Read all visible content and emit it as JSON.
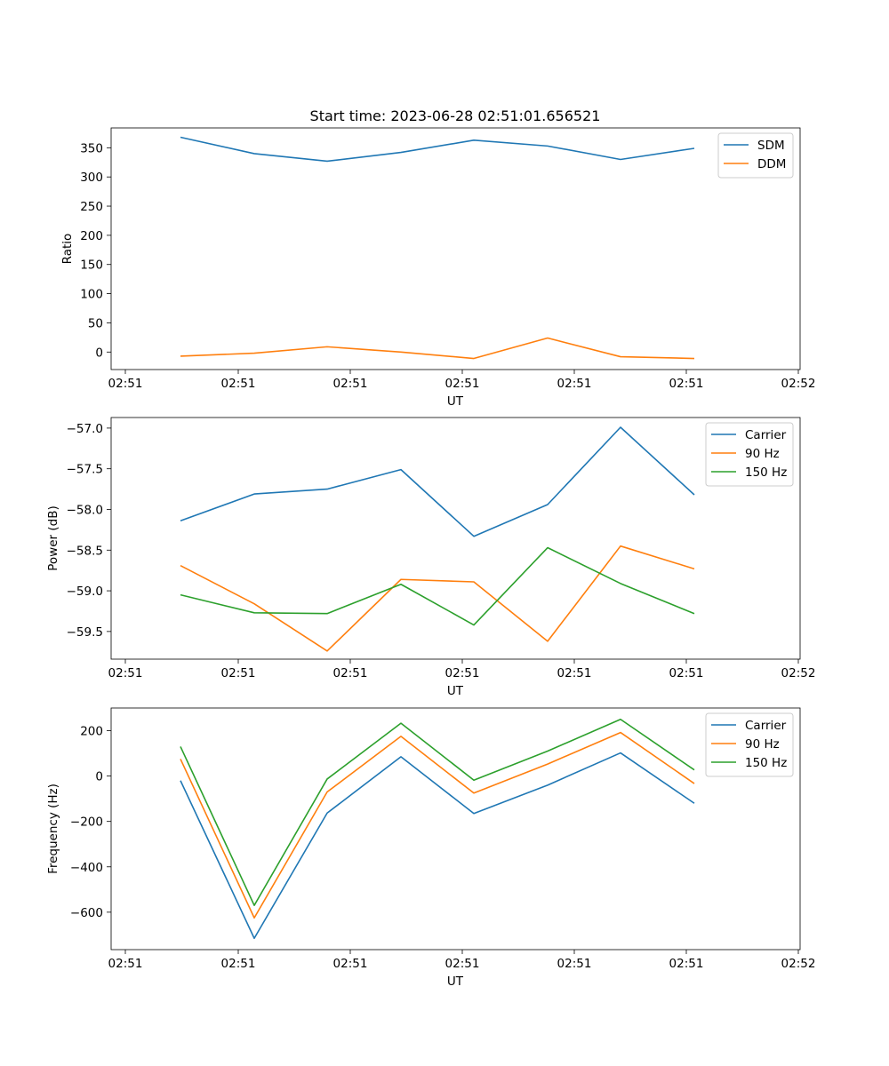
{
  "title": "Start time: 2023-06-28 02:51:01.656521",
  "colors": {
    "blue": "#1f77b4",
    "orange": "#ff7f0e",
    "green": "#2ca02c"
  },
  "chart_data": [
    {
      "type": "line",
      "xlabel": "UT",
      "ylabel": "Ratio",
      "xticks": [
        "02:51",
        "02:51",
        "02:51",
        "02:51",
        "02:51",
        "02:51",
        "02:52"
      ],
      "yticks": [
        0,
        50,
        100,
        150,
        200,
        250,
        300,
        350
      ],
      "ylim": [
        -30,
        384
      ],
      "legend": "top-right",
      "series": [
        {
          "name": "SDM",
          "color": "#1f77b4",
          "values": [
            368,
            340,
            327,
            342,
            363,
            353,
            330,
            349
          ]
        },
        {
          "name": "DDM",
          "color": "#ff7f0e",
          "values": [
            -7,
            -2,
            9,
            0,
            -11,
            24,
            -8,
            -11
          ]
        }
      ]
    },
    {
      "type": "line",
      "xlabel": "UT",
      "ylabel": "Power (dB)",
      "xticks": [
        "02:51",
        "02:51",
        "02:51",
        "02:51",
        "02:51",
        "02:51",
        "02:52"
      ],
      "yticks": [
        -59.5,
        -59.0,
        -58.5,
        -58.0,
        -57.5,
        -57.0
      ],
      "ytick_labels": [
        "−59.5",
        "−59.0",
        "−58.5",
        "−58.0",
        "−57.5",
        "−57.0"
      ],
      "ylim": [
        -59.84,
        -56.87
      ],
      "legend": "top-right",
      "series": [
        {
          "name": "Carrier",
          "color": "#1f77b4",
          "values": [
            -58.14,
            -57.81,
            -57.75,
            -57.51,
            -58.33,
            -57.94,
            -56.99,
            -57.82
          ]
        },
        {
          "name": "90 Hz",
          "color": "#ff7f0e",
          "values": [
            -58.69,
            -59.16,
            -59.74,
            -58.86,
            -58.89,
            -59.62,
            -58.45,
            -58.73
          ]
        },
        {
          "name": "150 Hz",
          "color": "#2ca02c",
          "values": [
            -59.05,
            -59.27,
            -59.28,
            -58.92,
            -59.42,
            -58.47,
            -58.91,
            -59.28
          ]
        }
      ]
    },
    {
      "type": "line",
      "xlabel": "UT",
      "ylabel": "Frequency (Hz)",
      "xticks": [
        "02:51",
        "02:51",
        "02:51",
        "02:51",
        "02:51",
        "02:51",
        "02:52"
      ],
      "yticks": [
        -600,
        -400,
        -200,
        0,
        200
      ],
      "ytick_labels": [
        "−600",
        "−400",
        "−200",
        "0",
        "200"
      ],
      "ylim": [
        -765,
        300
      ],
      "legend": "top-right",
      "series": [
        {
          "name": "Carrier",
          "color": "#1f77b4",
          "values": [
            -20,
            -715,
            -163,
            85,
            -165,
            -40,
            102,
            -120
          ]
        },
        {
          "name": "90 Hz",
          "color": "#ff7f0e",
          "values": [
            75,
            -625,
            -70,
            175,
            -75,
            53,
            192,
            -33
          ]
        },
        {
          "name": "150 Hz",
          "color": "#2ca02c",
          "values": [
            130,
            -570,
            -13,
            233,
            -18,
            110,
            250,
            27
          ]
        }
      ]
    }
  ]
}
